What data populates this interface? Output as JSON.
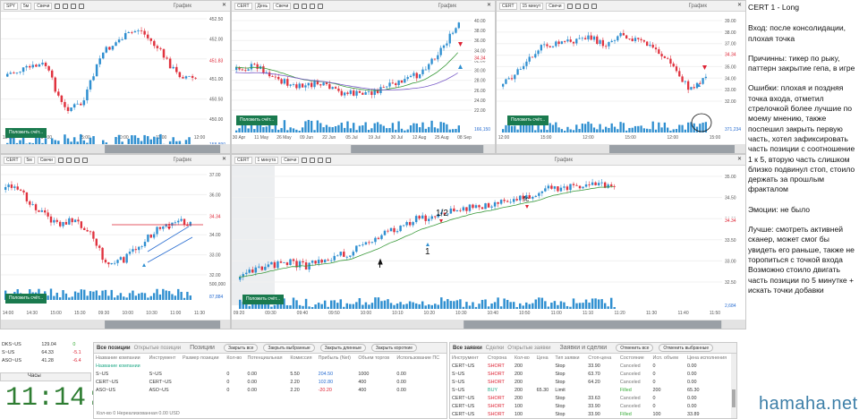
{
  "charts": [
    {
      "ticker": "SPY",
      "interval": "5м",
      "type": "Свечи",
      "title": "График",
      "yticks": [
        "452.50",
        "452.00",
        "451.50",
        "451.00",
        "450.50",
        "450.00"
      ],
      "price_mark": "451.83",
      "vol_mark": "158,890",
      "xticks": [
        "13:00",
        "14:00",
        "15:00",
        "10:00",
        "11:00",
        "12:00"
      ],
      "button": "Положить счёт..."
    },
    {
      "ticker": "CERT",
      "interval": "День",
      "type": "Свечи",
      "title": "График",
      "yticks": [
        "40.00",
        "38.00",
        "36.00",
        "34.00",
        "32.00",
        "30.00",
        "28.00",
        "26.00",
        "24.00",
        "22.00"
      ],
      "price_mark": "34.34",
      "vol_mark": "166,150",
      "xticks": [
        "30 Apr",
        "11 May",
        "26 May",
        "09 Jun",
        "22 Jun",
        "05 Jul",
        "19 Jul",
        "30 Jul",
        "12 Aug",
        "25 Aug",
        "08 Sep"
      ],
      "button": "Положить счёт..."
    },
    {
      "ticker": "CERT",
      "interval": "15 минут",
      "type": "Свечи",
      "title": "График",
      "yticks": [
        "39.00",
        "38.00",
        "37.00",
        "36.00",
        "35.00",
        "34.00",
        "33.00",
        "32.00"
      ],
      "price_mark": "34.34",
      "vol_mark": "371,234",
      "xticks": [
        "12:00",
        "15:00",
        "12:00",
        "15:00",
        "12:00",
        "15:00"
      ],
      "button": "Положить счёт..."
    },
    {
      "ticker": "CERT",
      "interval": "5м",
      "type": "Свечи",
      "title": "График",
      "yticks": [
        "37.00",
        "36.00",
        "35.00",
        "34.00",
        "33.00",
        "32.00"
      ],
      "price_mark": "34.34",
      "vol_mark": "87,884",
      "vol_top": "500,000",
      "xticks": [
        "14:00",
        "14:30",
        "15:00",
        "15:30",
        "09:30",
        "10:00",
        "10:30",
        "11:00",
        "11:30"
      ],
      "button": "Положить счёт..."
    },
    {
      "ticker": "CERT",
      "interval": "1 минута",
      "type": "Свечи",
      "title": "График",
      "yticks": [
        "35.00",
        "34.50",
        "34.00",
        "33.50",
        "33.00",
        "32.50"
      ],
      "price_mark": "34.34",
      "vol_mark": "2,684",
      "xticks": [
        "09:20",
        "09:30",
        "09:40",
        "09:50",
        "10:00",
        "10:10",
        "10:20",
        "10:30",
        "10:40",
        "10:50",
        "11:00",
        "11:10",
        "11:20",
        "11:30",
        "11:40",
        "11:50"
      ],
      "annotations": {
        "half": "1/2",
        "one": "1",
        "fc": "fc"
      },
      "button": "Положить счёт..."
    }
  ],
  "watchlist": [
    {
      "sym": "DKS~US",
      "price": "129.04",
      "chg": "0"
    },
    {
      "sym": "S~US",
      "price": "64.33",
      "chg": "-5.1"
    },
    {
      "sym": "ASO~US",
      "price": "41.28",
      "chg": "-6.4"
    }
  ],
  "clock": {
    "title": "Часы",
    "time": "11:14:11"
  },
  "positions": {
    "tabs": [
      "Все позиции",
      "Открытые позиции"
    ],
    "title": "Позиции",
    "buttons": [
      "Закрыть все",
      "Закрыть выбранные",
      "Закрыть длинные",
      "Закрыть короткие"
    ],
    "headers": [
      "Название компании",
      "Инструмент",
      "Размер позиции",
      "Кол-во",
      "Потенциальная",
      "Комиссия",
      "Прибыль (Net)",
      "Объем торгов",
      "Использование ПС"
    ],
    "filter": "Название компании",
    "rows": [
      [
        "S~US",
        "S~US",
        "0",
        "0.00",
        "5.50",
        "204.50",
        "1000",
        "0.00"
      ],
      [
        "CERT~US",
        "CERT~US",
        "0",
        "0.00",
        "2.20",
        "102.80",
        "400",
        "0.00"
      ],
      [
        "ASO~US",
        "ASO~US",
        "0",
        "0.00",
        "2.20",
        "-20.20",
        "400",
        "0.00"
      ]
    ],
    "footer": "Кол-во  0   Нереализованная  0.00 USD"
  },
  "orders": {
    "tabs": [
      "Все заявки",
      "Сделки",
      "Открытые заявки"
    ],
    "title": "Заявки и сделки",
    "buttons": [
      "Отменить все",
      "Отменить выбранные"
    ],
    "headers": [
      "Инструмент",
      "Сторона",
      "Кол-во",
      "Цена",
      "Тип заявки",
      "Стоп-цена",
      "Состояние",
      "Исп. объем",
      "Цена исполнения"
    ],
    "rows": [
      [
        "CERT~US",
        "SHORT",
        "200",
        "",
        "Stop",
        "33.90",
        "Canceled",
        "0",
        "0.00"
      ],
      [
        "S~US",
        "SHORT",
        "200",
        "",
        "Stop",
        "63.70",
        "Canceled",
        "0",
        "0.00"
      ],
      [
        "S~US",
        "SHORT",
        "200",
        "",
        "Stop",
        "64.20",
        "Canceled",
        "0",
        "0.00"
      ],
      [
        "S~US",
        "BUY",
        "200",
        "65.30",
        "Limit",
        "",
        "Filled",
        "200",
        "65.30"
      ],
      [
        "CERT~US",
        "SHORT",
        "200",
        "",
        "Stop",
        "33.63",
        "Canceled",
        "0",
        "0.00"
      ],
      [
        "CERT~US",
        "SHORT",
        "100",
        "",
        "Stop",
        "33.90",
        "Canceled",
        "0",
        "0.00"
      ],
      [
        "CERT~US",
        "SHORT",
        "100",
        "",
        "Stop",
        "33.90",
        "Filled",
        "100",
        "33.89"
      ],
      [
        "CERT~US",
        "SHORT",
        "200",
        "",
        "Stop",
        "33.40",
        "Canceled",
        "0",
        "0.00"
      ]
    ]
  },
  "notes": {
    "title": "CERT 1 - Long",
    "entry": "Вход: после консолидации, плохая точка",
    "reasons": "Причинны: тикер по рыку, паттерн закрытие гепа, в игре",
    "errors": "Ошибки: плохая  и поздняя точка входа, отметил стрелочкой более лучшие по моему мнению, также поспешил закрыть первую часть, хотел зафиксировать часть позиции с соотношение 1 к 5, вторую часть слишком близко подвинул стоп, стоило держать за прошлым фракталом",
    "emotions": "Эмоции: не было",
    "better": "Лучше: смотреть активней сканер, может смог бы увидеть его раньше, также не торопиться с точкой входа",
    "possible": "Возможно стоило двигать часть позиции по 5 минутке + искать точки добавки"
  },
  "watermark": "hamaha.net",
  "colors": {
    "up": "#2f8fd0",
    "down": "#e0333f",
    "ema": "#3a9a3a",
    "ma": "#7a5cc8",
    "green_btn": "#1a7a4e"
  }
}
